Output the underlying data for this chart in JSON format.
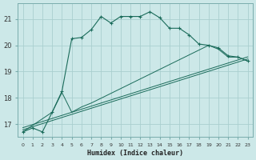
{
  "xlabel": "Humidex (Indice chaleur)",
  "bg_color": "#cce8e8",
  "grid_color": "#aacfcf",
  "line_color": "#1a6b5a",
  "xlim": [
    -0.5,
    23.5
  ],
  "ylim": [
    16.5,
    21.6
  ],
  "xtick_values": [
    0,
    1,
    2,
    3,
    4,
    5,
    6,
    7,
    8,
    9,
    10,
    11,
    12,
    13,
    14,
    15,
    16,
    17,
    18,
    19,
    20,
    21,
    22,
    23
  ],
  "ytick_values": [
    17,
    18,
    19,
    20,
    21
  ],
  "main_line": {
    "x": [
      0,
      1,
      2,
      3,
      4,
      5,
      6,
      7,
      8,
      9,
      10,
      11,
      12,
      13,
      14,
      15,
      16,
      17,
      18,
      19,
      20,
      21,
      22,
      23
    ],
    "y": [
      16.7,
      16.85,
      16.7,
      17.45,
      18.25,
      20.25,
      20.3,
      20.6,
      21.1,
      20.85,
      21.1,
      21.1,
      21.1,
      21.28,
      21.05,
      20.65,
      20.65,
      20.4,
      20.05,
      20.0,
      19.9,
      19.6,
      19.55,
      19.4
    ]
  },
  "secondary_lines": [
    {
      "x": [
        0,
        3,
        4,
        5,
        6,
        7,
        19,
        20,
        21,
        22,
        23
      ],
      "y": [
        16.7,
        17.45,
        18.2,
        17.45,
        17.65,
        17.8,
        20.0,
        19.85,
        19.55,
        19.55,
        19.4
      ]
    },
    {
      "x": [
        0,
        23
      ],
      "y": [
        16.7,
        19.4
      ]
    },
    {
      "x": [
        0,
        23
      ],
      "y": [
        16.7,
        19.4
      ]
    }
  ]
}
